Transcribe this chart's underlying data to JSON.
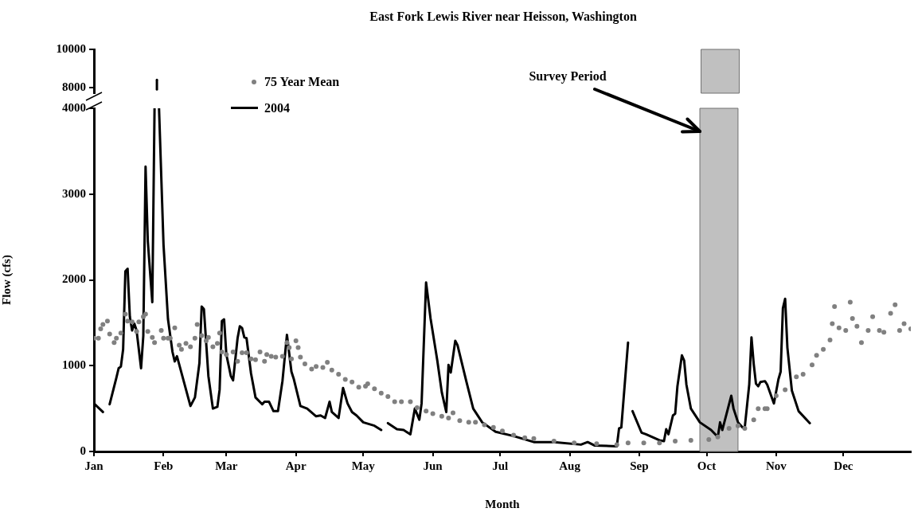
{
  "chart_data": [
    {
      "type": "line",
      "title": "East Fork Lewis River near Heisson, Washington",
      "xlim": [
        "--01-01",
        "--12-31"
      ],
      "ylim": [
        7700,
        10000
      ],
      "yticks": [
        8000,
        10000
      ],
      "tick_labels": "y",
      "bands": [
        {
          "axis": "x",
          "from": "--09-28",
          "to": "--10-15",
          "color": "#c0c0c0"
        }
      ],
      "series": [
        {
          "type": "line",
          "color": "#000000",
          "marker": "none",
          "x": [
            "--01-29",
            "--01-29"
          ],
          "values": [
            7900,
            8400
          ]
        }
      ]
    },
    {
      "type": "line",
      "xlabel": "Month",
      "ylabel": "Flow (cfs)",
      "xlim": [
        "--01-01",
        "--12-31"
      ],
      "ylim": [
        0,
        4000
      ],
      "yticks": [
        0,
        1000,
        2000,
        3000,
        4000
      ],
      "xticks": [
        {
          "value": "--01-01",
          "label": "Jan"
        },
        {
          "value": "--02-01",
          "label": "Feb"
        },
        {
          "value": "--03-01",
          "label": "Mar"
        },
        {
          "value": "--04-01",
          "label": "Apr"
        },
        {
          "value": "--05-01",
          "label": "May"
        },
        {
          "value": "--06-01",
          "label": "Jun"
        },
        {
          "value": "--07-01",
          "label": "Jul"
        },
        {
          "value": "--08-01",
          "label": "Aug"
        },
        {
          "value": "--09-01",
          "label": "Sep"
        },
        {
          "value": "--10-01",
          "label": "Oct"
        },
        {
          "value": "--11-01",
          "label": "Nov"
        },
        {
          "value": "--12-01",
          "label": "Dec"
        }
      ],
      "legend": "top left",
      "bands": [
        {
          "axis": "x",
          "from": "--09-28",
          "to": "--10-15",
          "color": "#c0c0c0"
        }
      ],
      "annotations": [
        {
          "text": "Survey Period",
          "x": "--09-28",
          "y": 3730
        }
      ],
      "series": [
        {
          "name": "75 Year Mean",
          "type": "scatter",
          "color": "#808080",
          "marker": "circle",
          "x": [
            "--01-01",
            "--01-03",
            "--01-04",
            "--01-05",
            "--01-07",
            "--01-08",
            "--01-10",
            "--01-11",
            "--01-13",
            "--01-15",
            "--01-16",
            "--01-18",
            "--01-20",
            "--01-21",
            "--01-23",
            "--01-24",
            "--01-25",
            "--01-27",
            "--01-28",
            "--01-31",
            "--02-01",
            "--02-03",
            "--02-04",
            "--02-06",
            "--02-08",
            "--02-09",
            "--02-11",
            "--02-13",
            "--02-15",
            "--02-16",
            "--02-18",
            "--02-20",
            "--02-21",
            "--02-23",
            "--02-25",
            "--02-26",
            "--02-27",
            "--03-01",
            "--03-04",
            "--03-06",
            "--03-08",
            "--03-10",
            "--03-12",
            "--03-14",
            "--03-16",
            "--03-18",
            "--03-19",
            "--03-21",
            "--03-23",
            "--03-26",
            "--03-28",
            "--03-29",
            "--03-30",
            "--04-01",
            "--04-02",
            "--04-03",
            "--04-05",
            "--04-08",
            "--04-10",
            "--04-13",
            "--04-15",
            "--04-17",
            "--04-20",
            "--04-23",
            "--04-26",
            "--04-29",
            "--05-02",
            "--05-03",
            "--05-06",
            "--05-09",
            "--05-12",
            "--05-15",
            "--05-18",
            "--05-22",
            "--05-25",
            "--05-29",
            "--06-01",
            "--06-05",
            "--06-08",
            "--06-10",
            "--06-13",
            "--06-17",
            "--06-20",
            "--06-24",
            "--06-28",
            "--07-02",
            "--07-07",
            "--07-12",
            "--07-16",
            "--07-25",
            "--08-03",
            "--08-13",
            "--08-22",
            "--08-27",
            "--09-03",
            "--09-10",
            "--09-17",
            "--09-24",
            "--10-02",
            "--10-06",
            "--10-11",
            "--10-15",
            "--10-18",
            "--10-22",
            "--10-24",
            "--10-27",
            "--10-28",
            "--11-01",
            "--11-05",
            "--11-10",
            "--11-13",
            "--11-17",
            "--11-19",
            "--11-22",
            "--11-25",
            "--11-26",
            "--11-27",
            "--11-29",
            "--12-02",
            "--12-04",
            "--12-05",
            "--12-07",
            "--12-09",
            "--12-12",
            "--12-14",
            "--12-17",
            "--12-19",
            "--12-22",
            "--12-24",
            "--12-26",
            "--12-28",
            "--12-31"
          ],
          "values": [
            1320,
            1320,
            1430,
            1480,
            1520,
            1370,
            1270,
            1320,
            1380,
            1600,
            1520,
            1510,
            1400,
            1510,
            1570,
            1600,
            1400,
            1330,
            1270,
            1410,
            1320,
            1320,
            1320,
            1440,
            1240,
            1190,
            1260,
            1220,
            1320,
            1480,
            1350,
            1290,
            1330,
            1220,
            1260,
            1380,
            1160,
            1130,
            1160,
            1050,
            1150,
            1150,
            1080,
            1070,
            1160,
            1050,
            1130,
            1110,
            1100,
            1110,
            1270,
            1210,
            1080,
            1290,
            1210,
            1100,
            1020,
            960,
            990,
            980,
            1040,
            950,
            900,
            840,
            810,
            750,
            760,
            790,
            730,
            680,
            640,
            580,
            580,
            580,
            510,
            470,
            440,
            410,
            390,
            450,
            360,
            340,
            340,
            310,
            280,
            240,
            190,
            160,
            150,
            120,
            100,
            90,
            80,
            100,
            100,
            100,
            120,
            130,
            140,
            170,
            270,
            300,
            270,
            370,
            500,
            500,
            500,
            650,
            720,
            870,
            900,
            1010,
            1120,
            1190,
            1300,
            1490,
            1690,
            1440,
            1410,
            1740,
            1550,
            1460,
            1270,
            1410,
            1570,
            1410,
            1390,
            1610,
            1710,
            1410,
            1490,
            1430
          ]
        },
        {
          "name": "2004",
          "type": "line",
          "color": "#000000",
          "marker": "none",
          "x": [
            "--01-01",
            "--01-05",
            "--01-06",
            "--01-08",
            "--01-11",
            "--01-12",
            "--01-13",
            "--01-14",
            "--01-15",
            "--01-16",
            "--01-17",
            "--01-18",
            "--01-19",
            "--01-20",
            "--01-22",
            "--01-23",
            "--01-24",
            "--01-25",
            "--01-27",
            "--01-28",
            "--01-29",
            "--01-30",
            "--02-01",
            "--02-03",
            "--02-05",
            "--02-06",
            "--02-07",
            "--02-10",
            "--02-13",
            "--02-15",
            "--02-17",
            "--02-18",
            "--02-19",
            "--02-21",
            "--02-23",
            "--02-25",
            "--02-26",
            "--02-27",
            "--02-28",
            "--03-01",
            "--03-03",
            "--03-04",
            "--03-06",
            "--03-07",
            "--03-08",
            "--03-09",
            "--03-10",
            "--03-12",
            "--03-14",
            "--03-17",
            "--03-18",
            "--03-20",
            "--03-22",
            "--03-24",
            "--03-26",
            "--03-28",
            "--03-30",
            "--03-31",
            "--04-03",
            "--04-06",
            "--04-10",
            "--04-12",
            "--04-14",
            "--04-16",
            "--04-17",
            "--04-20",
            "--04-22",
            "--04-24",
            "--04-26",
            "--04-28",
            "--05-01",
            "--05-06",
            "--05-09",
            "--05-10",
            "--05-12",
            "--05-16",
            "--05-19",
            "--05-22",
            "--05-24",
            "--05-26",
            "--05-27",
            "--05-29",
            "--05-31",
            "--06-03",
            "--06-05",
            "--06-07",
            "--06-08",
            "--06-09",
            "--06-11",
            "--06-12",
            "--06-16",
            "--06-19",
            "--06-23",
            "--06-29",
            "--07-07",
            "--07-16",
            "--07-25",
            "--08-06",
            "--08-09",
            "--08-12",
            "--08-22",
            "--08-23",
            "--08-24",
            "--08-27",
            "--08-28",
            "--08-29",
            "--09-02",
            "--09-04",
            "--09-10",
            "--09-12",
            "--09-13",
            "--09-14",
            "--09-15",
            "--09-16",
            "--09-17",
            "--09-18",
            "--09-20",
            "--09-21",
            "--09-22",
            "--09-24",
            "--09-28",
            "--10-03",
            "--10-06",
            "--10-07",
            "--10-08",
            "--10-12",
            "--10-13",
            "--10-15",
            "--10-17",
            "--10-18",
            "--10-20",
            "--10-21",
            "--10-22",
            "--10-23",
            "--10-24",
            "--10-25",
            "--10-27",
            "--10-28",
            "--10-31",
            "--11-02",
            "--11-03",
            "--11-04",
            "--11-05",
            "--11-06",
            "--11-08",
            "--11-11",
            "--11-16"
          ],
          "values": [
            560,
            460,
            null,
            550,
            860,
            970,
            990,
            1190,
            2100,
            2130,
            1570,
            1410,
            1490,
            1410,
            970,
            1350,
            3320,
            2450,
            1740,
            4000,
            null,
            4000,
            2410,
            1540,
            1160,
            1050,
            1110,
            820,
            530,
            630,
            1030,
            1690,
            1660,
            880,
            500,
            520,
            720,
            1520,
            1540,
            1130,
            880,
            830,
            1320,
            1460,
            1440,
            1330,
            1320,
            910,
            630,
            550,
            580,
            580,
            470,
            470,
            820,
            1360,
            930,
            850,
            530,
            500,
            410,
            420,
            390,
            580,
            460,
            390,
            740,
            560,
            460,
            420,
            340,
            300,
            250,
            null,
            330,
            260,
            250,
            200,
            500,
            370,
            560,
            1970,
            1550,
            1060,
            690,
            460,
            1010,
            920,
            1290,
            1240,
            810,
            500,
            340,
            230,
            180,
            110,
            110,
            80,
            110,
            70,
            60,
            270,
            280,
            1270,
            null,
            470,
            220,
            200,
            130,
            120,
            260,
            200,
            310,
            420,
            440,
            760,
            1120,
            1060,
            780,
            500,
            340,
            250,
            170,
            340,
            250,
            650,
            500,
            340,
            280,
            280,
            780,
            1330,
            1020,
            790,
            760,
            810,
            820,
            780,
            560,
            840,
            930,
            1670,
            1780,
            1210,
            710,
            470,
            330
          ]
        }
      ]
    }
  ]
}
